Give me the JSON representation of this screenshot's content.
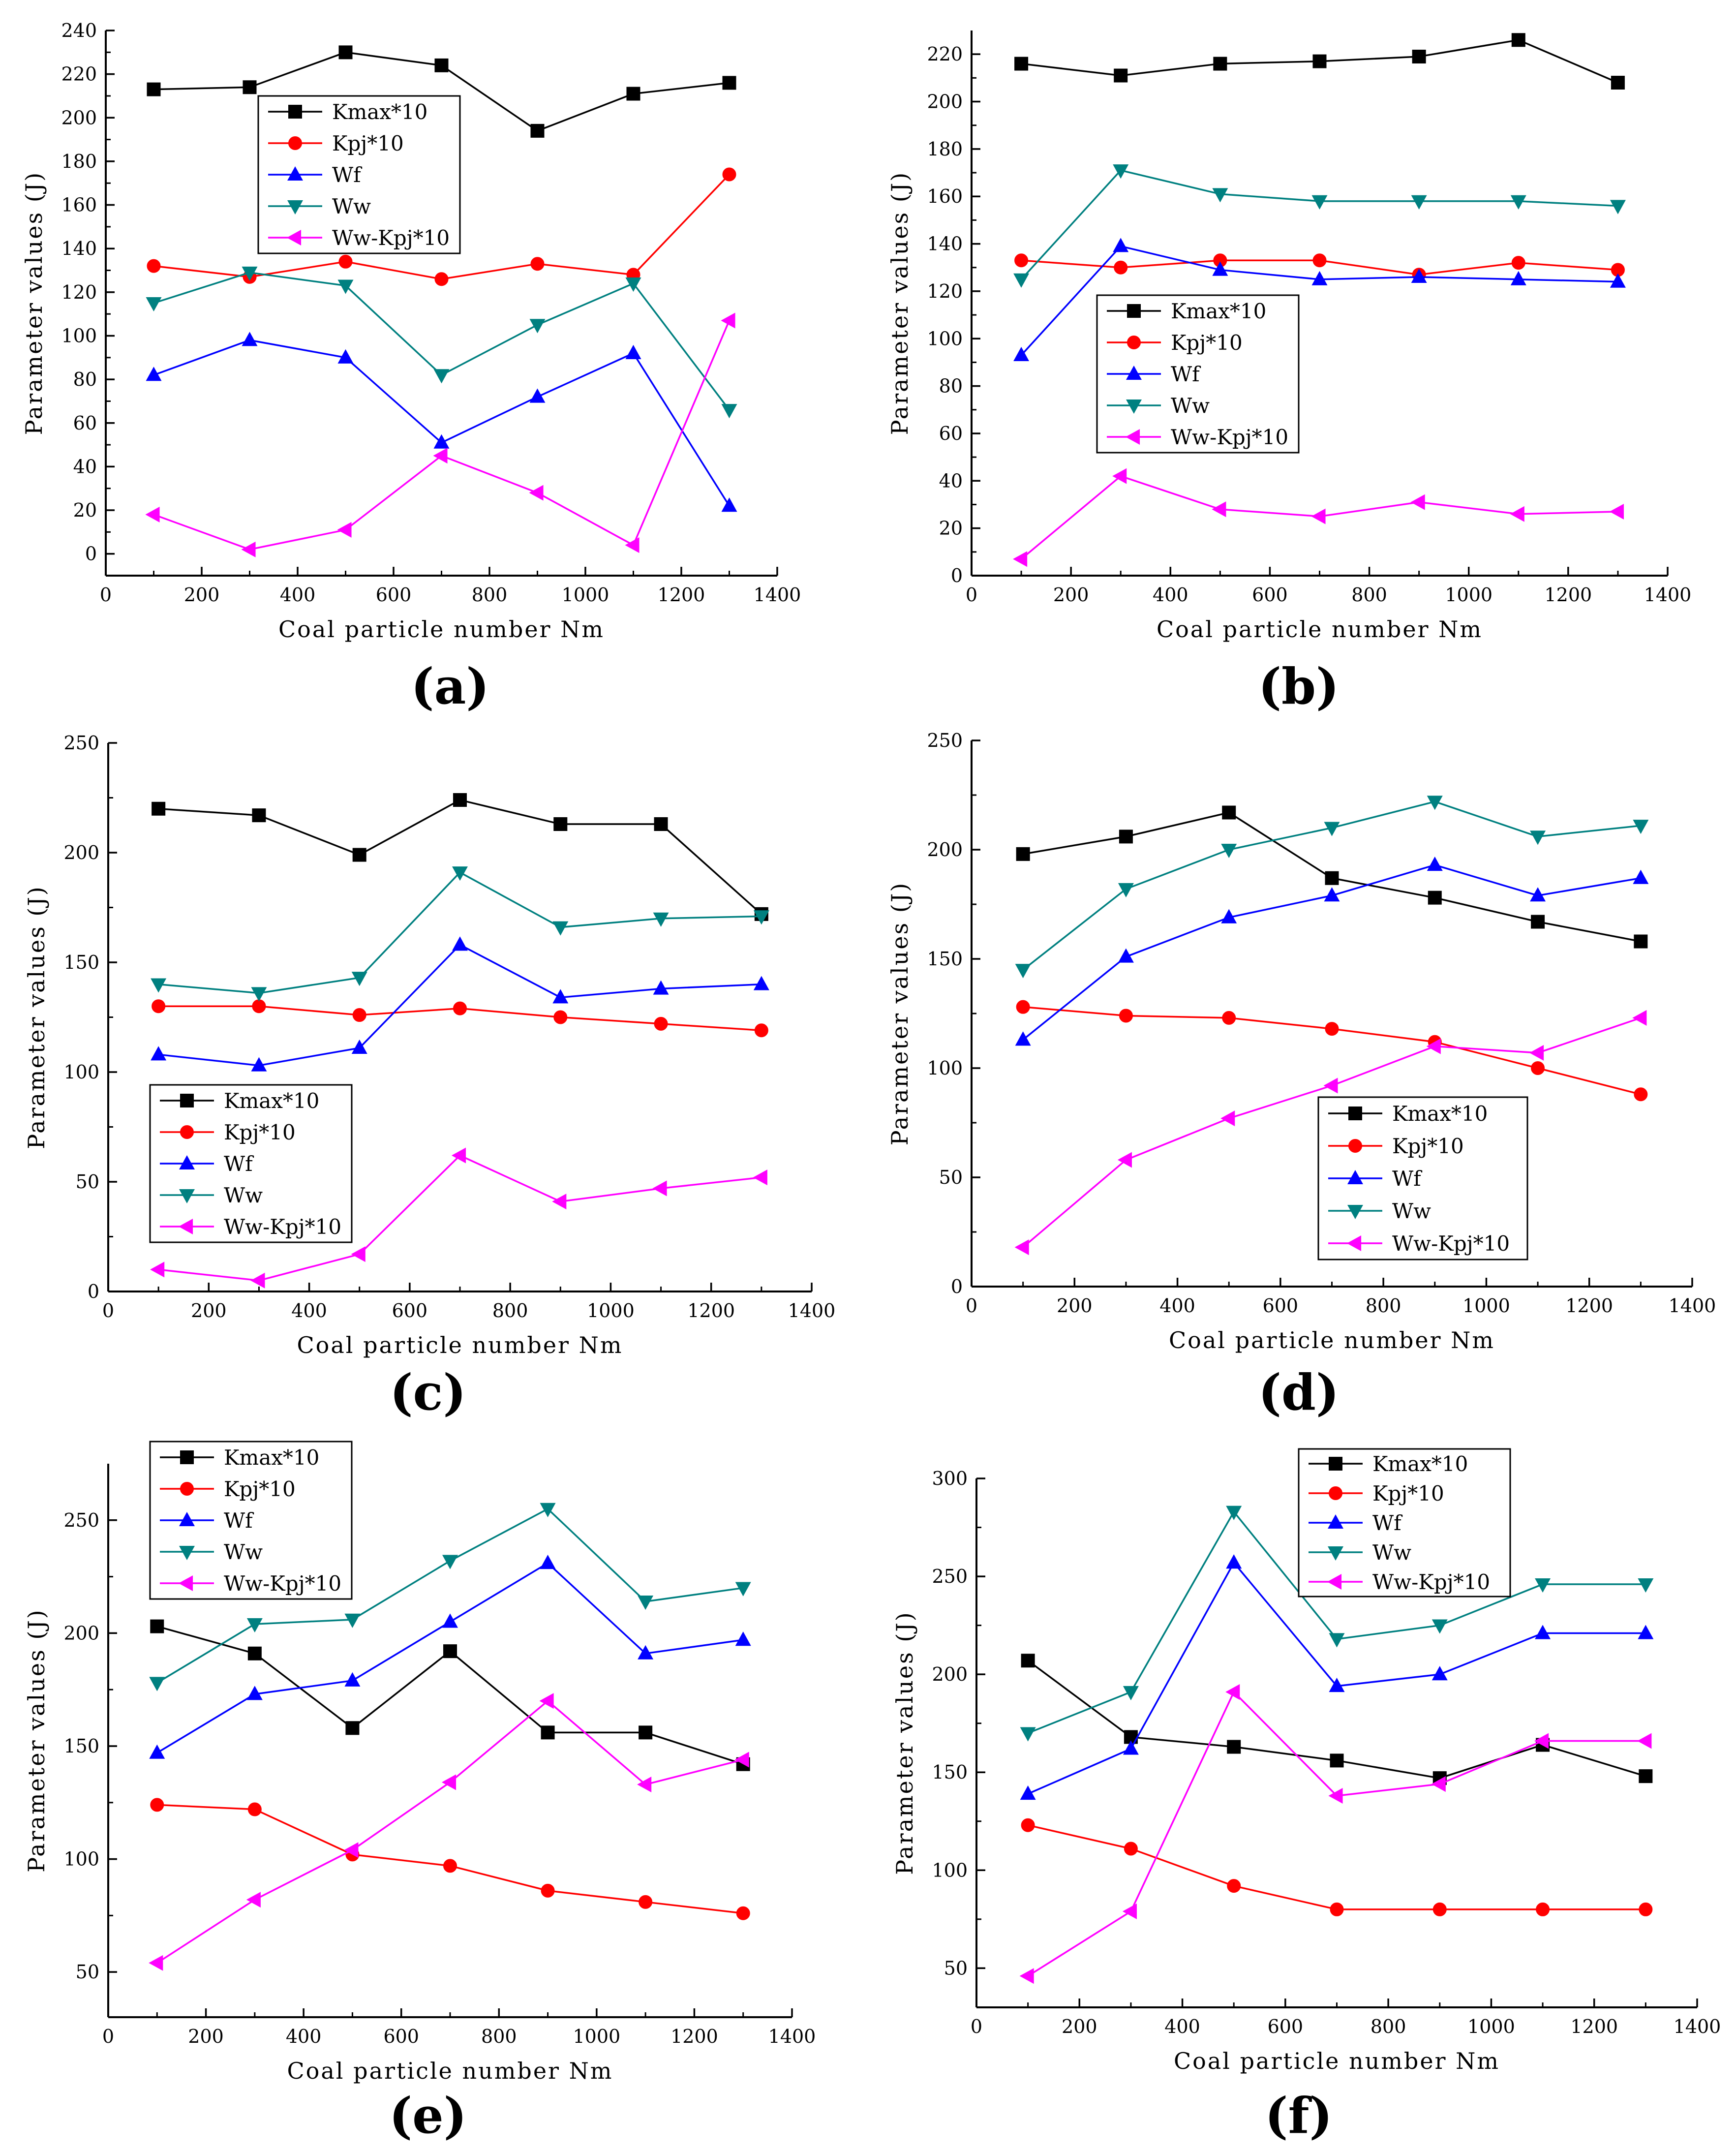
{
  "figure": {
    "panels": [
      "(a)",
      "(b)",
      "(c)",
      "(d)",
      "(e)",
      "(f)"
    ]
  },
  "legend_entries": [
    "Kmax*10",
    "Kpj*10",
    "Wf",
    "Ww",
    "Ww-Kpj*10"
  ],
  "colors": {
    "Kmax*10": "#000000",
    "Kpj*10": "#ff0000",
    "Wf": "#0000ff",
    "Ww": "#008080",
    "Ww-Kpj*10": "#ff00ff"
  },
  "markers": {
    "Kmax*10": "square",
    "Kpj*10": "circle",
    "Wf": "triangle-up",
    "Ww": "triangle-down",
    "Ww-Kpj*10": "triangle-left"
  },
  "chart_data": [
    {
      "type": "line",
      "panel": "(a)",
      "xlabel": "Coal particle number Nm",
      "ylabel": "Parameter values (J)",
      "xlim": [
        0,
        1400
      ],
      "ylim": [
        -10,
        240
      ],
      "xticks": [
        0,
        200,
        400,
        600,
        800,
        1000,
        1200,
        1400
      ],
      "yticks": [
        0,
        20,
        40,
        60,
        80,
        100,
        120,
        140,
        160,
        180,
        200,
        220,
        240
      ],
      "legend_position": "top-center",
      "x": [
        100,
        300,
        500,
        700,
        900,
        1100,
        1300
      ],
      "series": [
        {
          "name": "Kmax*10",
          "values": [
            213,
            214,
            230,
            224,
            194,
            211,
            216
          ]
        },
        {
          "name": "Kpj*10",
          "values": [
            132,
            127,
            134,
            126,
            133,
            128,
            174
          ]
        },
        {
          "name": "Wf",
          "values": [
            82,
            98,
            90,
            51,
            72,
            92,
            22
          ]
        },
        {
          "name": "Ww",
          "values": [
            115,
            129,
            123,
            82,
            105,
            124,
            66
          ]
        },
        {
          "name": "Ww-Kpj*10",
          "values": [
            18,
            2,
            11,
            45,
            28,
            4,
            107
          ]
        }
      ]
    },
    {
      "type": "line",
      "panel": "(b)",
      "xlabel": "Coal particle number Nm",
      "ylabel": "Parameter values (J)",
      "xlim": [
        0,
        1400
      ],
      "ylim": [
        0,
        230
      ],
      "xticks": [
        0,
        200,
        400,
        600,
        800,
        1000,
        1200,
        1400
      ],
      "yticks": [
        0,
        20,
        40,
        60,
        80,
        100,
        120,
        140,
        160,
        180,
        200,
        220
      ],
      "legend_position": "middle-left",
      "x": [
        100,
        300,
        500,
        700,
        900,
        1100,
        1300
      ],
      "series": [
        {
          "name": "Kmax*10",
          "values": [
            216,
            211,
            216,
            217,
            219,
            226,
            208
          ]
        },
        {
          "name": "Kpj*10",
          "values": [
            133,
            130,
            133,
            133,
            127,
            132,
            129
          ]
        },
        {
          "name": "Wf",
          "values": [
            93,
            139,
            129,
            125,
            126,
            125,
            124
          ]
        },
        {
          "name": "Ww",
          "values": [
            125,
            171,
            161,
            158,
            158,
            158,
            156
          ]
        },
        {
          "name": "Ww-Kpj*10",
          "values": [
            7,
            42,
            28,
            25,
            31,
            26,
            27
          ]
        }
      ]
    },
    {
      "type": "line",
      "panel": "(c)",
      "xlabel": "Coal particle number Nm",
      "ylabel": "Parameter values (J)",
      "xlim": [
        0,
        1400
      ],
      "ylim": [
        0,
        250
      ],
      "xticks": [
        0,
        200,
        400,
        600,
        800,
        1000,
        1200,
        1400
      ],
      "yticks": [
        0,
        50,
        100,
        150,
        200,
        250
      ],
      "legend_position": "bottom-left",
      "x": [
        100,
        300,
        500,
        700,
        900,
        1100,
        1300
      ],
      "series": [
        {
          "name": "Kmax*10",
          "values": [
            220,
            217,
            199,
            224,
            213,
            213,
            172
          ]
        },
        {
          "name": "Kpj*10",
          "values": [
            130,
            130,
            126,
            129,
            125,
            122,
            119
          ]
        },
        {
          "name": "Wf",
          "values": [
            108,
            103,
            111,
            158,
            134,
            138,
            140
          ]
        },
        {
          "name": "Ww",
          "values": [
            140,
            136,
            143,
            191,
            166,
            170,
            171
          ]
        },
        {
          "name": "Ww-Kpj*10",
          "values": [
            10,
            5,
            17,
            62,
            41,
            47,
            52
          ]
        }
      ]
    },
    {
      "type": "line",
      "panel": "(d)",
      "xlabel": "Coal particle number Nm",
      "ylabel": "Parameter values (J)",
      "xlim": [
        0,
        1400
      ],
      "ylim": [
        0,
        250
      ],
      "xticks": [
        0,
        200,
        400,
        600,
        800,
        1000,
        1200,
        1400
      ],
      "yticks": [
        0,
        50,
        100,
        150,
        200,
        250
      ],
      "legend_position": "bottom-right",
      "x": [
        100,
        300,
        500,
        700,
        900,
        1100,
        1300
      ],
      "series": [
        {
          "name": "Kmax*10",
          "values": [
            198,
            206,
            217,
            187,
            178,
            167,
            158
          ]
        },
        {
          "name": "Kpj*10",
          "values": [
            128,
            124,
            123,
            118,
            112,
            100,
            88
          ]
        },
        {
          "name": "Wf",
          "values": [
            113,
            151,
            169,
            179,
            193,
            179,
            187
          ]
        },
        {
          "name": "Ww",
          "values": [
            145,
            182,
            200,
            210,
            222,
            206,
            211
          ]
        },
        {
          "name": "Ww-Kpj*10",
          "values": [
            18,
            58,
            77,
            92,
            110,
            107,
            123
          ]
        }
      ]
    },
    {
      "type": "line",
      "panel": "(e)",
      "xlabel": "Coal particle number Nm",
      "ylabel": "Parameter values (J)",
      "xlim": [
        0,
        1400
      ],
      "ylim": [
        30,
        275
      ],
      "xticks": [
        0,
        200,
        400,
        600,
        800,
        1000,
        1200,
        1400
      ],
      "yticks": [
        50,
        100,
        150,
        200,
        250
      ],
      "legend_position": "top-left",
      "x": [
        100,
        300,
        500,
        700,
        900,
        1100,
        1300
      ],
      "series": [
        {
          "name": "Kmax*10",
          "values": [
            203,
            191,
            158,
            192,
            156,
            156,
            142
          ]
        },
        {
          "name": "Kpj*10",
          "values": [
            124,
            122,
            102,
            97,
            86,
            81,
            76
          ]
        },
        {
          "name": "Wf",
          "values": [
            147,
            173,
            179,
            205,
            231,
            191,
            197
          ]
        },
        {
          "name": "Ww",
          "values": [
            178,
            204,
            206,
            232,
            255,
            214,
            220
          ]
        },
        {
          "name": "Ww-Kpj*10",
          "values": [
            54,
            82,
            104,
            134,
            170,
            133,
            144
          ]
        }
      ]
    },
    {
      "type": "line",
      "panel": "(f)",
      "xlabel": "Coal particle number Nm",
      "ylabel": "Parameter values (J)",
      "xlim": [
        0,
        1400
      ],
      "ylim": [
        30,
        300
      ],
      "xticks": [
        0,
        200,
        400,
        600,
        800,
        1000,
        1200,
        1400
      ],
      "yticks": [
        50,
        100,
        150,
        200,
        250,
        300
      ],
      "legend_position": "top-right",
      "x": [
        100,
        300,
        500,
        700,
        900,
        1100,
        1300
      ],
      "series": [
        {
          "name": "Kmax*10",
          "values": [
            207,
            168,
            163,
            156,
            147,
            164,
            148
          ]
        },
        {
          "name": "Kpj*10",
          "values": [
            123,
            111,
            92,
            80,
            80,
            80,
            80
          ]
        },
        {
          "name": "Wf",
          "values": [
            139,
            162,
            257,
            194,
            200,
            221,
            221
          ]
        },
        {
          "name": "Ww",
          "values": [
            170,
            191,
            283,
            218,
            225,
            246,
            246
          ]
        },
        {
          "name": "Ww-Kpj*10",
          "values": [
            46,
            79,
            191,
            138,
            144,
            166,
            166
          ]
        }
      ]
    }
  ]
}
